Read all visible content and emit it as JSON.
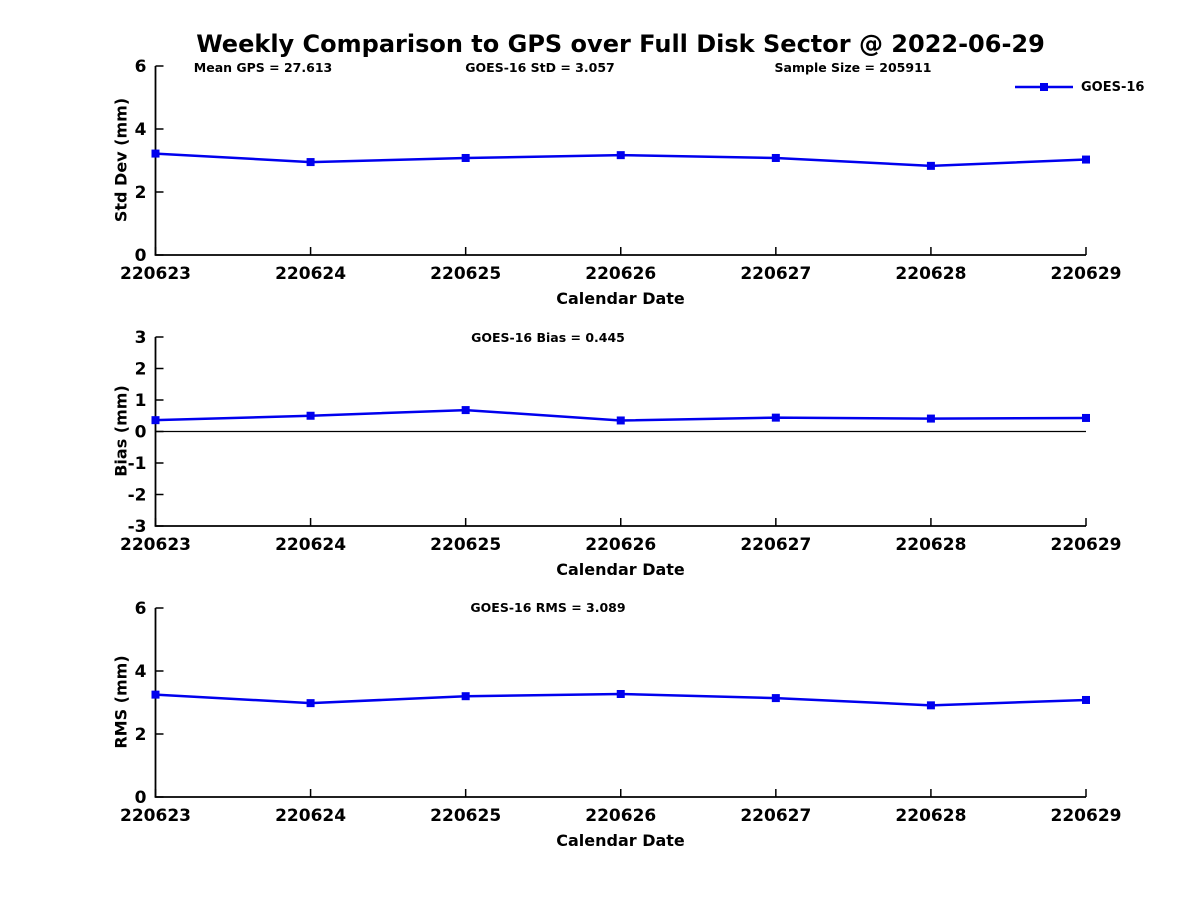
{
  "page_title": "Weekly Comparison to GPS over Full Disk Sector @ 2022-06-29",
  "legend": {
    "label": "GOES-16"
  },
  "colors": {
    "line": "#0000EE",
    "axis": "#000000",
    "background": "#FFFFFF"
  },
  "chart_data": [
    {
      "type": "line",
      "name": "std-dev-vs-date",
      "annotations": [
        "Mean GPS = 27.613",
        "GOES-16 StD = 3.057",
        "Sample Size = 205911"
      ],
      "categories": [
        "220623",
        "220624",
        "220625",
        "220626",
        "220627",
        "220628",
        "220629"
      ],
      "series": [
        {
          "name": "GOES-16",
          "values": [
            3.22,
            2.95,
            3.08,
            3.17,
            3.08,
            2.83,
            3.03
          ]
        }
      ],
      "xlabel": "Calendar Date",
      "ylabel": "Std Dev (mm)",
      "ylim": [
        0,
        6
      ],
      "yticks": [
        0,
        2,
        4,
        6
      ],
      "zero_line": false,
      "grid": false,
      "legend_position": "top-right-outside",
      "marker": "square"
    },
    {
      "type": "line",
      "name": "bias-vs-date",
      "annotations": [
        "GOES-16 Bias  = 0.445"
      ],
      "categories": [
        "220623",
        "220624",
        "220625",
        "220626",
        "220627",
        "220628",
        "220629"
      ],
      "series": [
        {
          "name": "GOES-16",
          "values": [
            0.36,
            0.5,
            0.68,
            0.35,
            0.44,
            0.41,
            0.43
          ]
        }
      ],
      "xlabel": "Calendar Date",
      "ylabel": "Bias (mm)",
      "ylim": [
        -3,
        3
      ],
      "yticks": [
        3,
        2,
        1,
        0,
        -1,
        -2,
        -3
      ],
      "zero_line": true,
      "grid": false,
      "marker": "square"
    },
    {
      "type": "line",
      "name": "rms-vs-date",
      "annotations": [
        "GOES-16 RMS = 3.089"
      ],
      "categories": [
        "220623",
        "220624",
        "220625",
        "220626",
        "220627",
        "220628",
        "220629"
      ],
      "series": [
        {
          "name": "GOES-16",
          "values": [
            3.25,
            2.98,
            3.2,
            3.27,
            3.14,
            2.91,
            3.08
          ]
        }
      ],
      "xlabel": "Calendar Date",
      "ylabel": "RMS (mm)",
      "ylim": [
        0,
        6
      ],
      "yticks": [
        0,
        2,
        4,
        6
      ],
      "zero_line": false,
      "grid": false,
      "marker": "square"
    }
  ]
}
